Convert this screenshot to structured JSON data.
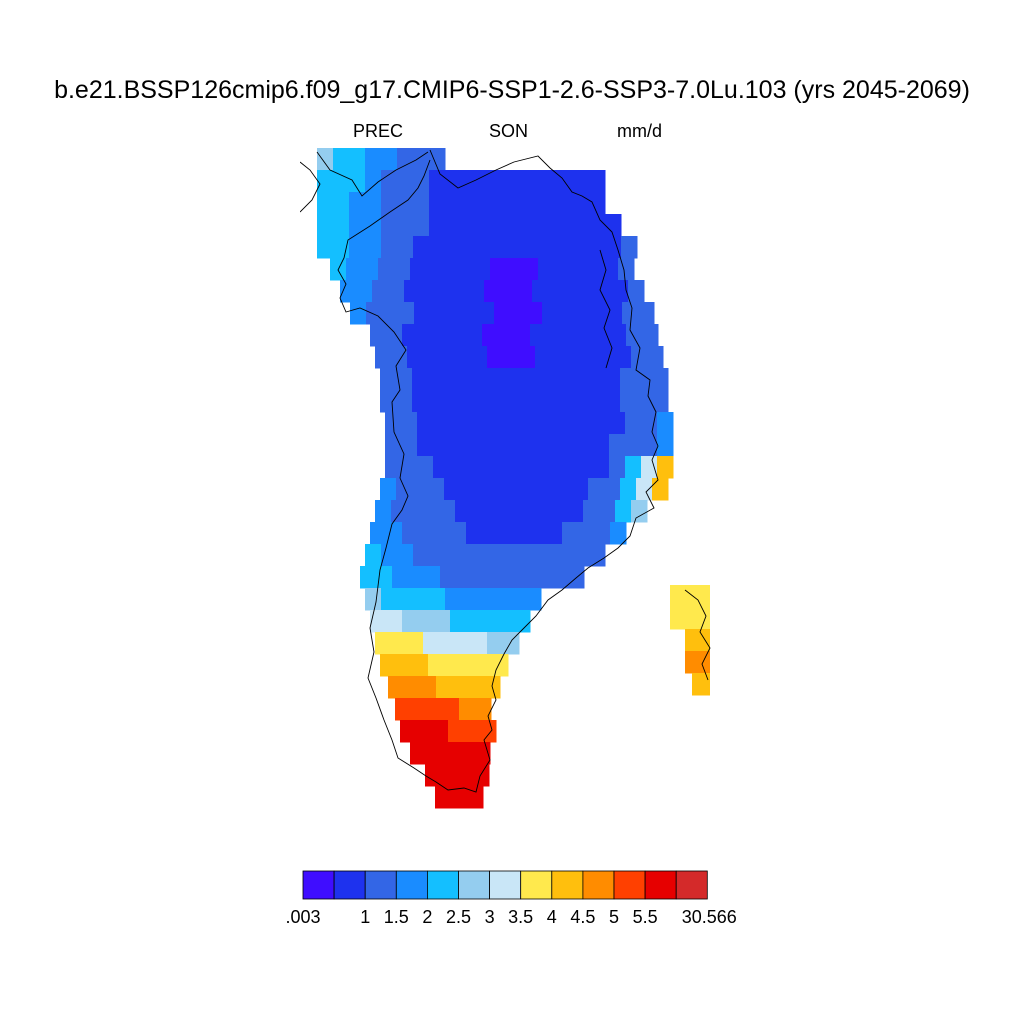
{
  "title": "b.e21.BSSP126cmip6.f09_g17.CMIP6-SSP1-2.6-SSP3-7.0Lu.103 (yrs 2045-2069)",
  "variable": "PREC",
  "season": "SON",
  "units": "mm/d",
  "colorbar": {
    "colors": [
      "#3f0dff",
      "#1e32ee",
      "#3366e6",
      "#1a8cff",
      "#14bfff",
      "#94cdef",
      "#c9e6f7",
      "#ffe94d",
      "#ffbf0d",
      "#ff8c00",
      "#ff4000",
      "#e60000",
      "#d42a2a"
    ],
    "labels": [
      ".003",
      "1",
      "1.5",
      "2",
      "2.5",
      "3",
      "3.5",
      "4",
      "4.5",
      "5",
      "5.5",
      "30.566"
    ]
  }
}
